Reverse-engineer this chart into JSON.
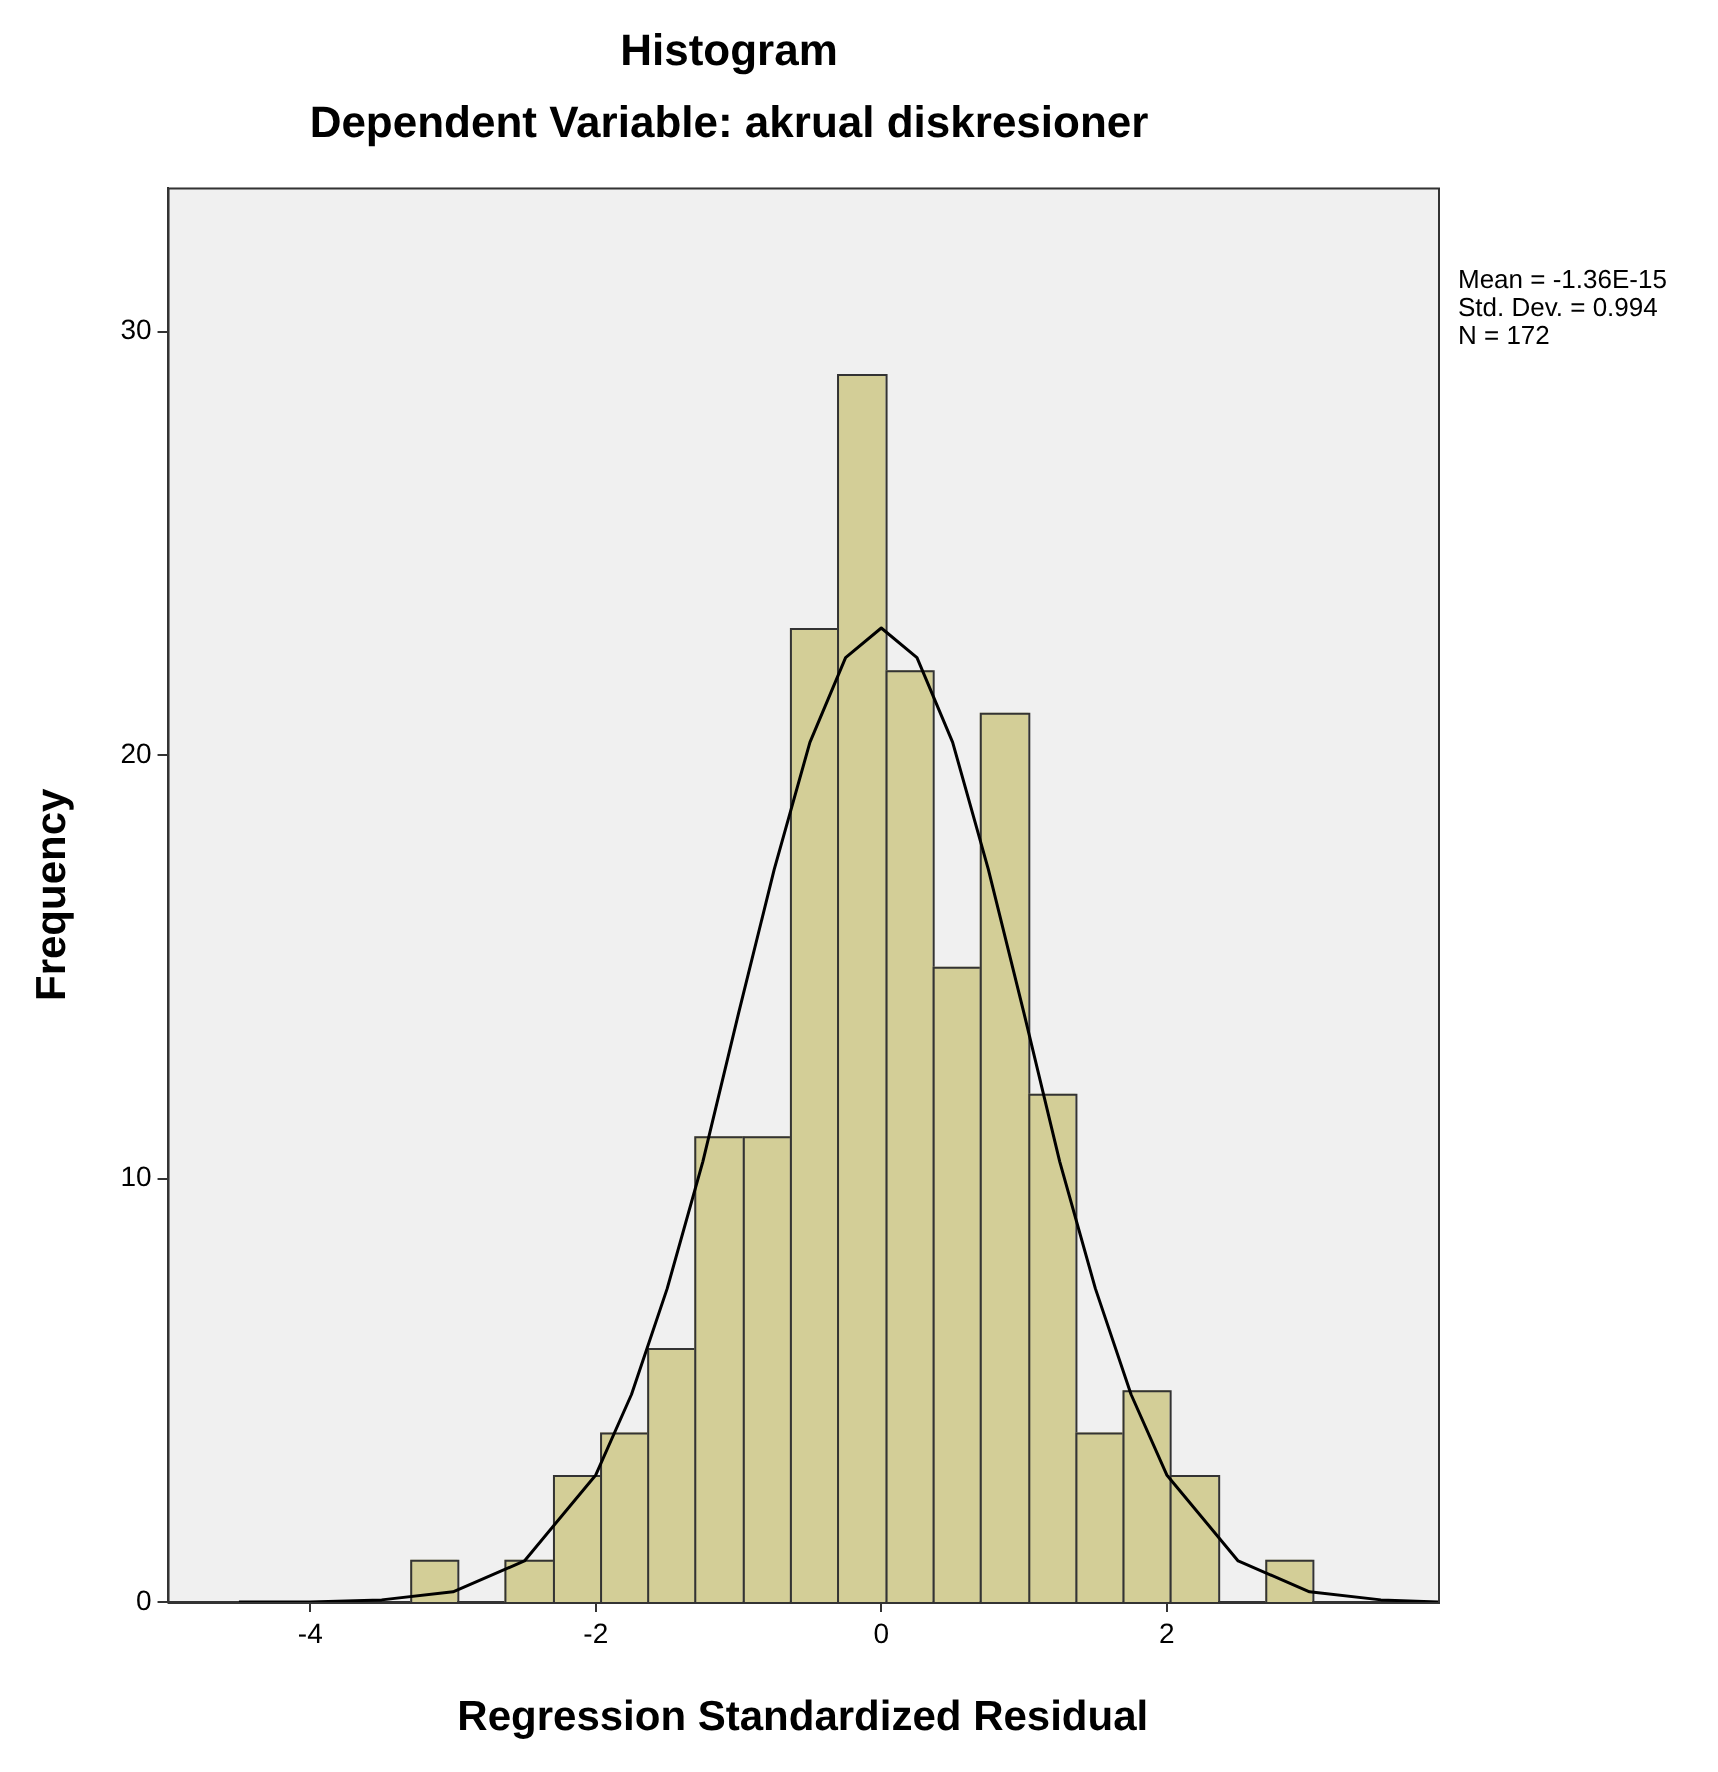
{
  "chart_data": {
    "type": "histogram",
    "title": "Histogram",
    "subtitle": "Dependent Variable: akrual diskresioner",
    "xlabel": "Regression Standardized Residual",
    "ylabel": "Frequency",
    "bins": [
      -3.3,
      -2.97,
      -2.64,
      -2.3,
      -1.97,
      -1.64,
      -1.31,
      -0.97,
      -0.64,
      -0.31,
      0.03,
      0.36,
      0.69,
      1.03,
      1.36,
      1.69,
      2.02,
      2.36,
      2.69,
      3.02
    ],
    "values": [
      1,
      0,
      1,
      3,
      4,
      6,
      11,
      11,
      23,
      29,
      22,
      15,
      21,
      12,
      4,
      5,
      3,
      0,
      1
    ],
    "color": "#d3ce97",
    "series": [
      {
        "type": "line",
        "color": "#000000",
        "x": [
          -4.5,
          -4,
          -3.5,
          -3,
          -2.5,
          -2,
          -1.75,
          -1.5,
          -1.25,
          -1,
          -0.75,
          -0.5,
          -0.25,
          0,
          0.25,
          0.5,
          0.75,
          1,
          1.25,
          1.5,
          1.75,
          2,
          2.5,
          3,
          3.5,
          3.9
        ],
        "values": [
          0,
          0,
          0.05,
          0.24,
          0.97,
          3.0,
          4.9,
          7.4,
          10.4,
          13.9,
          17.3,
          20.3,
          22.3,
          23,
          22.3,
          20.3,
          17.3,
          13.9,
          10.4,
          7.4,
          4.9,
          3.0,
          0.97,
          0.24,
          0.05,
          0
        ]
      }
    ],
    "xlim": [
      -5,
      3.9
    ],
    "ylim": [
      0,
      33.4
    ],
    "xticks": [
      -4,
      -2,
      0,
      2
    ],
    "yticks": [
      0,
      10,
      20,
      30
    ],
    "grid": false,
    "legend": false,
    "annotations": [
      "Mean = -1.36E-15",
      "Std. Dev. = 0.994",
      "N = 172"
    ]
  }
}
